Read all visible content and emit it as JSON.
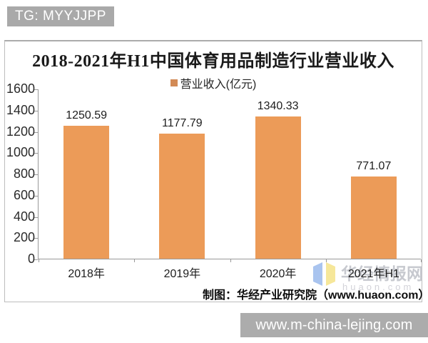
{
  "badge": {
    "text": "TG: MYYJJPP"
  },
  "chart": {
    "title": "2018-2021年H1中国体育用品制造行业营业收入",
    "legend_label": "营业收入(亿元)",
    "credit": "制图：华经产业研究院（www.huaon.com）"
  },
  "watermark": {
    "site_name": "华经情报网",
    "site_url": "huaon.com"
  },
  "footer_banner": {
    "url_text": "www.m-china-lejing.com"
  },
  "chart_data": {
    "type": "bar",
    "title": "2018-2021年H1中国体育用品制造行业营业收入",
    "categories": [
      "2018年",
      "2019年",
      "2020年",
      "2021年H1"
    ],
    "series": [
      {
        "name": "营业收入(亿元)",
        "values": [
          1250.59,
          1177.79,
          1340.33,
          771.07
        ]
      }
    ],
    "ylabel": "",
    "xlabel": "",
    "ylim": [
      0,
      1600
    ],
    "yticks": [
      0,
      200,
      400,
      600,
      800,
      1000,
      1200,
      1400,
      1600
    ],
    "grid": false,
    "legend_position": "top",
    "value_labels": true,
    "bar_color": "#ec9b58",
    "legend_marker_color": "#d28a56",
    "axis_color": "#999999"
  }
}
